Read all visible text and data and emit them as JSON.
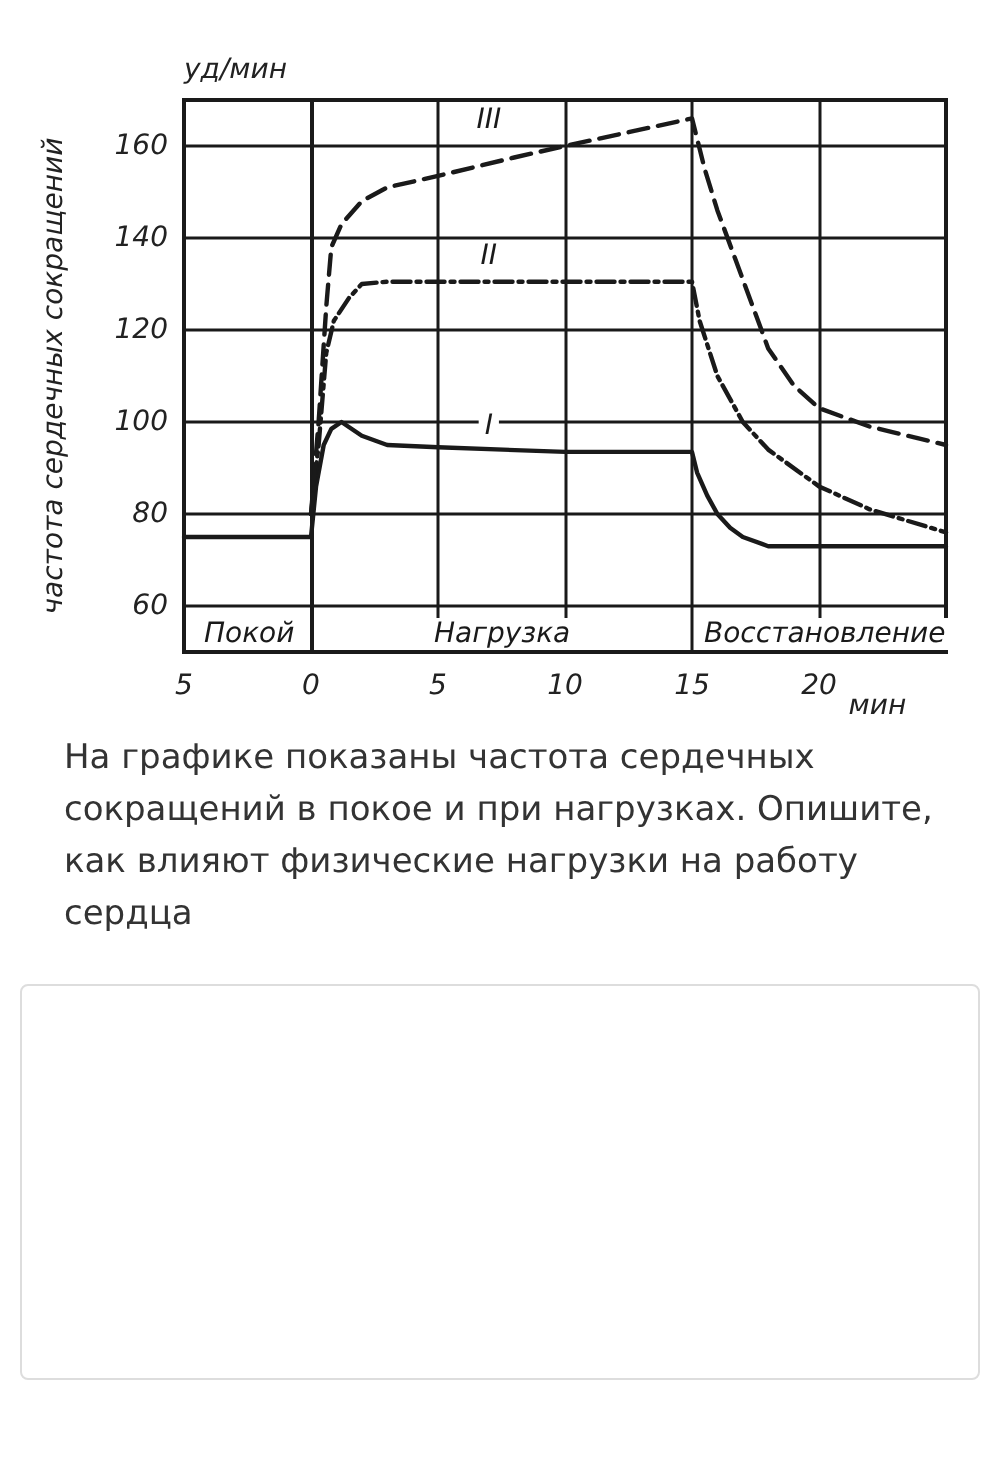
{
  "chart_data": {
    "type": "line",
    "ylabel": "частота сердечных сокращений",
    "xlabel": "мин",
    "xlim": [
      -5,
      25
    ],
    "xticks": [
      {
        "value": -5,
        "label": "5"
      },
      0,
      5,
      10,
      15,
      20
    ],
    "ylim": [
      50,
      170
    ],
    "yticks": [
      60,
      80,
      100,
      120,
      140,
      160
    ],
    "grid": true,
    "marker": "none",
    "series": [
      {
        "name": "I",
        "color": "#1a1a1a",
        "line_style": "solid",
        "x": [
          -5,
          0,
          0.2,
          0.5,
          0.8,
          1.2,
          2,
          3,
          5,
          10,
          15,
          15.2,
          15.6,
          16,
          16.5,
          17,
          18,
          20,
          25
        ],
        "values": [
          75,
          75,
          86,
          95,
          98.5,
          100,
          97,
          95,
          94.5,
          93.5,
          93.5,
          89,
          84,
          80,
          77,
          75,
          73,
          73,
          73
        ]
      },
      {
        "name": "II",
        "color": "#1a1a1a",
        "line_style": "dotted",
        "x": [
          0,
          0.3,
          0.6,
          0.9,
          1.5,
          2,
          3,
          15,
          15.3,
          16,
          17,
          18,
          20,
          22,
          25
        ],
        "values": [
          80,
          95,
          115,
          122,
          127,
          130,
          130.5,
          130.5,
          122,
          110,
          100,
          94,
          86,
          81,
          76
        ]
      },
      {
        "name": "III",
        "color": "#1a1a1a",
        "line_style": "dashed",
        "x": [
          0,
          0.3,
          0.6,
          0.8,
          1.2,
          2,
          3,
          5,
          8,
          10,
          15,
          15.5,
          16,
          17,
          18,
          19,
          20,
          22,
          25
        ],
        "values": [
          80,
          100,
          125,
          138,
          143,
          148,
          151,
          153.5,
          157.5,
          160,
          166,
          155,
          146,
          131,
          116,
          108,
          103,
          99,
          95
        ]
      }
    ],
    "annotations": [
      "уд/мин",
      "Покой",
      "Нагрузка",
      "Восстановление",
      "На графике показаны частота сердечных сокращений в покое и при нагрузках. Опишите, как влияют физические нагрузки на работу сердца"
    ]
  }
}
